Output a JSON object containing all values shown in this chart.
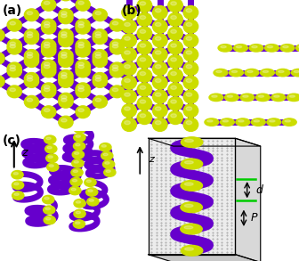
{
  "panel_a_label": "(a)",
  "panel_b_label": "(b)",
  "panel_c_label": "(c)",
  "p_label": "P",
  "d_label": "d",
  "z_label": "z",
  "yellow": "#ccdd00",
  "purple": "#6600cc",
  "green": "#00cc00",
  "black": "#000000",
  "bg": "#ffffff",
  "lw_tube": 5,
  "lw_tube_b": 4,
  "sphere_r": 0.05,
  "label_fs": 10
}
